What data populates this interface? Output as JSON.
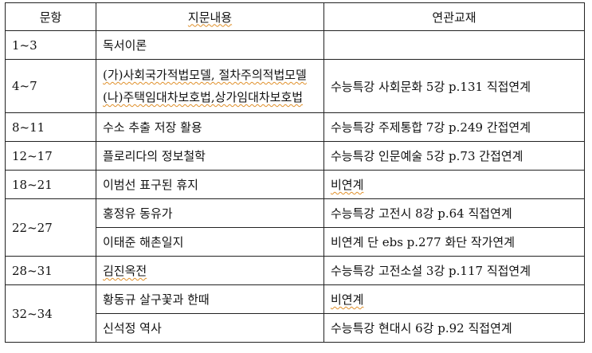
{
  "table": {
    "headers": [
      "문항",
      "지문내용",
      "연관교재"
    ],
    "rows": [
      {
        "range": "1~3",
        "items": [
          {
            "content": "독서이론",
            "textbook": ""
          }
        ]
      },
      {
        "range": "4~7",
        "items": [
          {
            "content": [
              "(가)사회국가적법모델, 절차주의적법모델",
              "(나)주택임대차보호법,상가임대차보호법"
            ],
            "textbook": "수능특강 사회문화 5강 p.131 직접연계"
          }
        ]
      },
      {
        "range": "8~11",
        "items": [
          {
            "content": "수소 추출 저장 활용",
            "textbook": "수능특강 주제통합 7강 p.249 간접연계"
          }
        ]
      },
      {
        "range": "12~17",
        "items": [
          {
            "content": "플로리다의 정보철학",
            "textbook": "수능특강 인문예술 5강 p.73 간접연계"
          }
        ]
      },
      {
        "range": "18~21",
        "items": [
          {
            "content": "이범선 표구된 휴지",
            "textbook": "비연계"
          }
        ]
      },
      {
        "range": "22~27",
        "items": [
          {
            "content": "홍정유 동유가",
            "textbook": "수능특강 고전시 8강 p.64 직접연계"
          },
          {
            "content": "이태준 해촌일지",
            "textbook": "비연계 단 ebs p.277 화단 작가연계"
          }
        ]
      },
      {
        "range": "28~31",
        "items": [
          {
            "content": "김진옥전",
            "textbook": "수능특강 고전소설 3강 p.117 직접연계"
          }
        ]
      },
      {
        "range": "32~34",
        "items": [
          {
            "content": "황동규 살구꽃과 한때",
            "textbook": "비연계"
          },
          {
            "content": "신석정 역사",
            "textbook": "수능특강 현대시 6강 p.92 직접연계"
          }
        ]
      }
    ]
  }
}
